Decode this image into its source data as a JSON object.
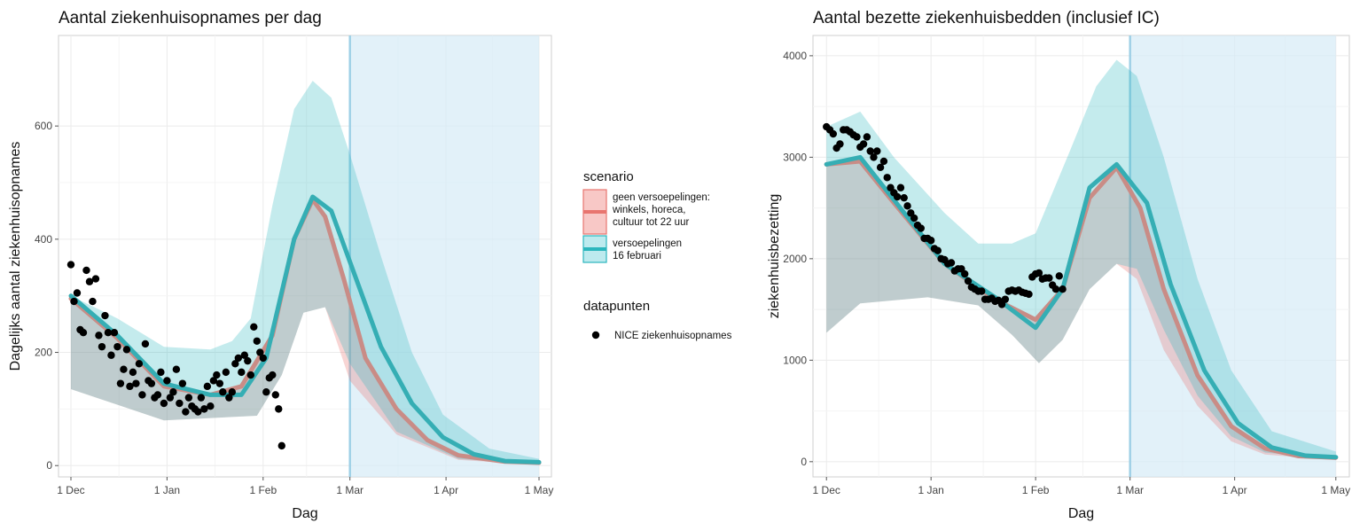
{
  "chart_data": [
    {
      "type": "line",
      "title": "Aantal ziekenhuisopnames per dag",
      "xlabel": "Dag",
      "ylabel": "Dagelijks aantal ziekenhuisopnames",
      "x_ticks": [
        "1 Dec",
        "1 Jan",
        "1 Feb",
        "1 Mar",
        "1 Apr",
        "1 May"
      ],
      "y_ticks": [
        "0",
        "200",
        "400",
        "600"
      ],
      "ylim": [
        -20,
        760
      ],
      "shaded_period": [
        "1 Mar",
        "1 May"
      ],
      "series": [
        {
          "name": "geen versoepelingen: winkels, horeca, cultuur tot 22 uur",
          "color": "#e8756f",
          "line": [
            [
              0,
              295
            ],
            [
              15,
              225
            ],
            [
              30,
              140
            ],
            [
              45,
              125
            ],
            [
              55,
              140
            ],
            [
              65,
              230
            ],
            [
              72,
              400
            ],
            [
              78,
              470
            ],
            [
              82,
              440
            ],
            [
              88,
              330
            ],
            [
              95,
              190
            ],
            [
              105,
              100
            ],
            [
              115,
              45
            ],
            [
              125,
              18
            ],
            [
              140,
              7
            ],
            [
              151,
              5
            ]
          ],
          "lower": [
            [
              0,
              135
            ],
            [
              30,
              80
            ],
            [
              60,
              88
            ],
            [
              68,
              160
            ],
            [
              75,
              270
            ],
            [
              82,
              280
            ],
            [
              90,
              150
            ],
            [
              105,
              55
            ],
            [
              125,
              10
            ],
            [
              151,
              1
            ]
          ],
          "upper": [
            [
              0,
              295
            ],
            [
              15,
              225
            ],
            [
              30,
              140
            ],
            [
              45,
              125
            ],
            [
              55,
              140
            ],
            [
              65,
              230
            ],
            [
              72,
              400
            ],
            [
              78,
              470
            ],
            [
              82,
              440
            ],
            [
              88,
              330
            ],
            [
              95,
              190
            ],
            [
              105,
              100
            ],
            [
              115,
              45
            ],
            [
              125,
              18
            ],
            [
              140,
              7
            ],
            [
              151,
              5
            ]
          ]
        },
        {
          "name": "versoepelingen 16 februari",
          "color": "#2bb6bd",
          "line": [
            [
              0,
              300
            ],
            [
              15,
              230
            ],
            [
              30,
              145
            ],
            [
              45,
              125
            ],
            [
              55,
              125
            ],
            [
              63,
              190
            ],
            [
              72,
              400
            ],
            [
              78,
              475
            ],
            [
              84,
              450
            ],
            [
              92,
              330
            ],
            [
              100,
              210
            ],
            [
              110,
              110
            ],
            [
              120,
              50
            ],
            [
              130,
              20
            ],
            [
              140,
              8
            ],
            [
              151,
              6
            ]
          ],
          "lower": [
            [
              0,
              135
            ],
            [
              30,
              80
            ],
            [
              60,
              88
            ],
            [
              68,
              160
            ],
            [
              75,
              270
            ],
            [
              82,
              280
            ],
            [
              90,
              180
            ],
            [
              105,
              60
            ],
            [
              125,
              12
            ],
            [
              151,
              1
            ]
          ],
          "upper": [
            [
              0,
              300
            ],
            [
              15,
              260
            ],
            [
              30,
              210
            ],
            [
              45,
              205
            ],
            [
              52,
              220
            ],
            [
              58,
              260
            ],
            [
              65,
              460
            ],
            [
              72,
              630
            ],
            [
              78,
              680
            ],
            [
              84,
              650
            ],
            [
              90,
              550
            ],
            [
              100,
              370
            ],
            [
              110,
              200
            ],
            [
              120,
              90
            ],
            [
              135,
              30
            ],
            [
              151,
              12
            ]
          ]
        }
      ],
      "points": {
        "name": "NICE ziekenhuisopnames",
        "x": [
          0,
          1,
          2,
          3,
          4,
          5,
          6,
          7,
          8,
          9,
          10,
          11,
          12,
          13,
          14,
          15,
          16,
          17,
          18,
          19,
          20,
          21,
          22,
          23,
          24,
          25,
          26,
          27,
          28,
          29,
          30,
          31,
          32,
          33,
          34,
          35,
          36,
          37,
          38,
          39,
          40,
          41,
          42,
          43,
          44,
          45,
          46,
          47,
          48,
          49,
          50,
          51,
          52,
          53,
          54,
          55,
          56,
          57,
          58,
          59,
          60,
          61,
          62,
          63,
          64,
          65,
          66,
          67,
          68
        ],
        "y": [
          355,
          290,
          305,
          240,
          235,
          345,
          325,
          290,
          330,
          230,
          210,
          265,
          235,
          195,
          235,
          210,
          145,
          170,
          205,
          140,
          165,
          145,
          180,
          125,
          215,
          150,
          145,
          120,
          125,
          165,
          110,
          150,
          120,
          130,
          170,
          110,
          145,
          95,
          120,
          105,
          100,
          95,
          120,
          100,
          140,
          105,
          150,
          160,
          145,
          130,
          165,
          120,
          130,
          180,
          190,
          165,
          195,
          185,
          160,
          245,
          220,
          200,
          190,
          130,
          155,
          160,
          125,
          100,
          35
        ]
      }
    },
    {
      "type": "line",
      "title": "Aantal bezette ziekenhuisbedden (inclusief IC)",
      "xlabel": "Dag",
      "ylabel": "ziekenhuisbezetting",
      "x_ticks": [
        "1 Dec",
        "1 Jan",
        "1 Feb",
        "1 Mar",
        "1 Apr",
        "1 May"
      ],
      "y_ticks": [
        "0",
        "1000",
        "2000",
        "3000",
        "4000"
      ],
      "ylim": [
        -150,
        4200
      ],
      "shaded_period": [
        "1 Mar",
        "1 May"
      ],
      "series": [
        {
          "name": "geen versoepelingen: winkels, horeca, cultuur tot 22 uur",
          "color": "#e8756f",
          "line": [
            [
              0,
              2930
            ],
            [
              10,
              2960
            ],
            [
              20,
              2550
            ],
            [
              35,
              1950
            ],
            [
              50,
              1600
            ],
            [
              62,
              1400
            ],
            [
              70,
              1700
            ],
            [
              78,
              2600
            ],
            [
              86,
              2900
            ],
            [
              93,
              2500
            ],
            [
              100,
              1700
            ],
            [
              110,
              850
            ],
            [
              120,
              350
            ],
            [
              130,
              130
            ],
            [
              140,
              55
            ],
            [
              151,
              40
            ]
          ],
          "lower": [
            [
              0,
              1270
            ],
            [
              10,
              1560
            ],
            [
              30,
              1620
            ],
            [
              45,
              1540
            ],
            [
              55,
              1250
            ],
            [
              63,
              970
            ],
            [
              70,
              1200
            ],
            [
              78,
              1700
            ],
            [
              86,
              1950
            ],
            [
              92,
              1800
            ],
            [
              100,
              1100
            ],
            [
              110,
              550
            ],
            [
              120,
              200
            ],
            [
              130,
              70
            ],
            [
              151,
              15
            ]
          ],
          "upper": [
            [
              0,
              2930
            ],
            [
              10,
              2960
            ],
            [
              20,
              2550
            ],
            [
              35,
              1950
            ],
            [
              50,
              1600
            ],
            [
              62,
              1400
            ],
            [
              70,
              1700
            ],
            [
              78,
              2600
            ],
            [
              86,
              2900
            ],
            [
              93,
              2500
            ],
            [
              100,
              1700
            ],
            [
              110,
              850
            ],
            [
              120,
              350
            ],
            [
              130,
              130
            ],
            [
              140,
              55
            ],
            [
              151,
              40
            ]
          ]
        },
        {
          "name": "versoepelingen 16 februari",
          "color": "#2bb6bd",
          "line": [
            [
              0,
              2930
            ],
            [
              10,
              3000
            ],
            [
              20,
              2580
            ],
            [
              35,
              1950
            ],
            [
              50,
              1620
            ],
            [
              62,
              1320
            ],
            [
              70,
              1700
            ],
            [
              78,
              2700
            ],
            [
              86,
              2930
            ],
            [
              95,
              2550
            ],
            [
              102,
              1750
            ],
            [
              112,
              900
            ],
            [
              122,
              380
            ],
            [
              132,
              140
            ],
            [
              142,
              60
            ],
            [
              151,
              45
            ]
          ],
          "lower": [
            [
              0,
              1270
            ],
            [
              10,
              1560
            ],
            [
              30,
              1620
            ],
            [
              45,
              1540
            ],
            [
              55,
              1250
            ],
            [
              63,
              970
            ],
            [
              70,
              1200
            ],
            [
              78,
              1700
            ],
            [
              86,
              1950
            ],
            [
              92,
              1900
            ],
            [
              100,
              1300
            ],
            [
              110,
              650
            ],
            [
              120,
              250
            ],
            [
              130,
              90
            ],
            [
              151,
              20
            ]
          ],
          "upper": [
            [
              0,
              3300
            ],
            [
              10,
              3450
            ],
            [
              20,
              3000
            ],
            [
              35,
              2450
            ],
            [
              45,
              2150
            ],
            [
              55,
              2150
            ],
            [
              62,
              2250
            ],
            [
              72,
              3050
            ],
            [
              80,
              3700
            ],
            [
              86,
              3960
            ],
            [
              92,
              3800
            ],
            [
              100,
              3000
            ],
            [
              110,
              1800
            ],
            [
              120,
              900
            ],
            [
              132,
              300
            ],
            [
              151,
              100
            ]
          ]
        }
      ],
      "points": {
        "name": "NICE ziekenhuisopnames",
        "x": [
          0,
          1,
          2,
          3,
          4,
          5,
          6,
          7,
          8,
          9,
          10,
          11,
          12,
          13,
          14,
          15,
          16,
          17,
          18,
          19,
          20,
          21,
          22,
          23,
          24,
          25,
          26,
          27,
          28,
          29,
          30,
          31,
          32,
          33,
          34,
          35,
          36,
          37,
          38,
          39,
          40,
          41,
          42,
          43,
          44,
          45,
          46,
          47,
          48,
          49,
          50,
          51,
          52,
          53,
          54,
          55,
          56,
          57,
          58,
          59,
          60,
          61,
          62,
          63,
          64,
          65,
          66,
          67,
          68,
          69,
          70
        ],
        "y": [
          3300,
          3270,
          3230,
          3090,
          3130,
          3270,
          3270,
          3250,
          3220,
          3200,
          3100,
          3130,
          3200,
          3060,
          3000,
          3060,
          2900,
          2960,
          2800,
          2700,
          2650,
          2610,
          2700,
          2600,
          2520,
          2450,
          2400,
          2330,
          2300,
          2200,
          2200,
          2180,
          2100,
          2080,
          2000,
          1990,
          1950,
          1960,
          1880,
          1900,
          1900,
          1850,
          1780,
          1720,
          1700,
          1680,
          1680,
          1600,
          1600,
          1610,
          1580,
          1590,
          1550,
          1600,
          1680,
          1690,
          1680,
          1690,
          1670,
          1660,
          1650,
          1820,
          1850,
          1860,
          1800,
          1810,
          1810,
          1740,
          1700,
          1830,
          1700
        ]
      }
    }
  ],
  "legend": {
    "scenario_title": "scenario",
    "scenario_items": [
      {
        "lines": [
          "geen versoepelingen:",
          " winkels, horeca,",
          " cultuur tot 22 uur"
        ],
        "fill": "#f8c8c6",
        "stroke": "#e8756f"
      },
      {
        "lines": [
          "versoepelingen",
          " 16 februari"
        ],
        "fill": "#bdeaee",
        "stroke": "#2bb6bd"
      }
    ],
    "points_title": "datapunten",
    "points_label": "NICE ziekenhuisopnames"
  }
}
